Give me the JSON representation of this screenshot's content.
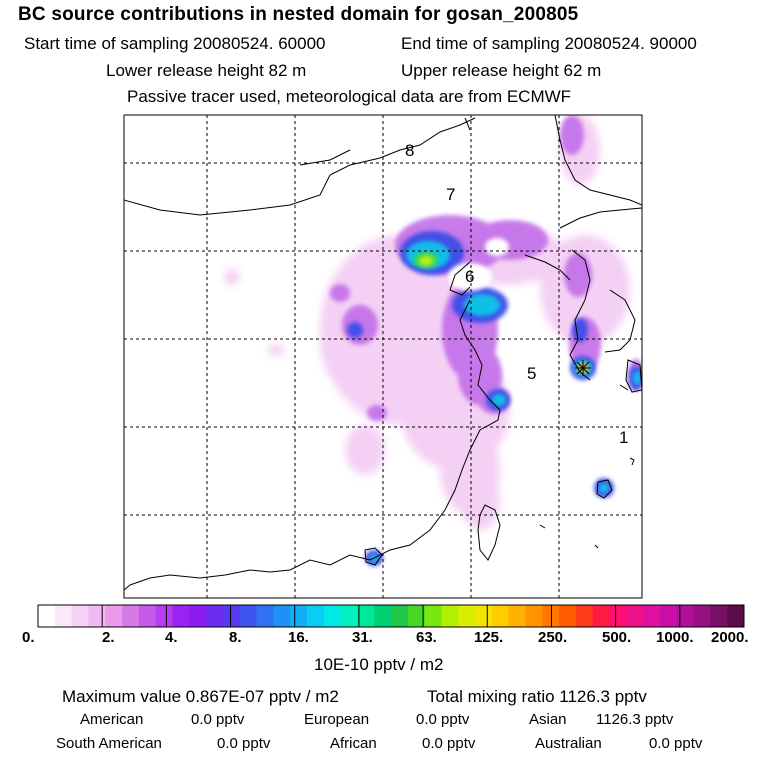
{
  "header": {
    "title": "BC  source contributions in nested domain for gosan_200805",
    "start_label": "Start time of sampling 20080524. 60000",
    "end_label": "End time of sampling 20080524. 90000",
    "lower_release": "Lower release height   82 m",
    "upper_release": "Upper release height   62 m",
    "note": "Passive tracer used, meteorological data are from ECMWF"
  },
  "map": {
    "region_labels": [
      "8",
      "7",
      "6",
      "5",
      "1"
    ],
    "receptor_marker": "star-marker-icon"
  },
  "colorbar": {
    "tick_labels": [
      "0.",
      "2.",
      "4.",
      "8.",
      "16.",
      "31.",
      "63.",
      "125.",
      "250.",
      "500.",
      "1000.",
      "2000."
    ],
    "unit_label": "10E-10 pptv / m2",
    "colors": [
      "#ffffff",
      "#fbe8fb",
      "#f7d2f7",
      "#f1b8f1",
      "#eb99eb",
      "#d67ae6",
      "#c65ae8",
      "#b63ef0",
      "#9b22f2",
      "#8a1cf2",
      "#6d2cf0",
      "#5a3aee",
      "#3f55f0",
      "#2f73f2",
      "#1f90f4",
      "#12aef6",
      "#08cdf4",
      "#00e8e8",
      "#00f2c0",
      "#00e89a",
      "#00d072",
      "#20c84a",
      "#46d628",
      "#7ae810",
      "#b0f000",
      "#d8f000",
      "#f4e400",
      "#ffcc00",
      "#ffb000",
      "#ff9400",
      "#ff7600",
      "#ff5c00",
      "#ff3a1a",
      "#ff1a44",
      "#ff1070",
      "#f0108a",
      "#de10a0",
      "#c810a8",
      "#b01098",
      "#961080",
      "#7a1064",
      "#5a0c48"
    ]
  },
  "footer": {
    "max_value": "Maximum value  0.867E-07 pptv / m2",
    "total_mixing": "Total mixing ratio     1126.3 pptv",
    "rows": [
      [
        {
          "label": "American",
          "value": "0.0 pptv"
        },
        {
          "label": "European",
          "value": "0.0 pptv"
        },
        {
          "label": "Asian",
          "value": "1126.3 pptv"
        }
      ],
      [
        {
          "label": "South American",
          "value": "0.0 pptv"
        },
        {
          "label": "African",
          "value": "0.0 pptv"
        },
        {
          "label": "Australian",
          "value": "0.0 pptv"
        }
      ]
    ]
  }
}
